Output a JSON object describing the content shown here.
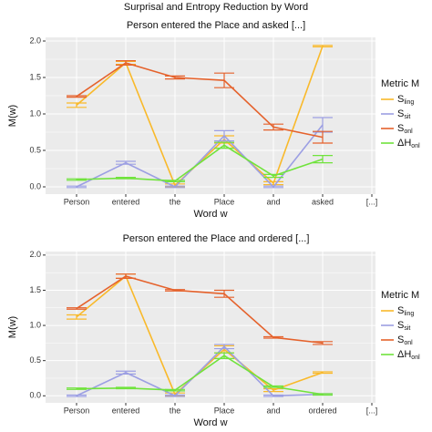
{
  "title": "Surprisal and Entropy Reduction by Word",
  "chart_data": [
    {
      "type": "line",
      "title": "Person entered the Place and asked [...]",
      "xlabel": "Word w",
      "ylabel": "M(w)",
      "legend_title": "Metric M",
      "legend": "right",
      "grid": true,
      "categories": [
        "Person",
        "entered",
        "the",
        "Place",
        "and",
        "asked",
        "[...]"
      ],
      "ylim": [
        -0.1,
        2.05
      ],
      "yticks": [
        {
          "value": 0,
          "label": "0.0"
        },
        {
          "value": 0.5,
          "label": "0.5"
        },
        {
          "value": 1,
          "label": "1.0"
        },
        {
          "value": 1.5,
          "label": "1.5"
        },
        {
          "value": 2,
          "label": "2.0"
        }
      ],
      "series": [
        {
          "name": "S",
          "name_sub": "ling",
          "color": "#f9b92a",
          "values": [
            1.12,
            1.7,
            0.02,
            0.65,
            0.05,
            1.93,
            null
          ],
          "errors": [
            0.03,
            0.02,
            0.02,
            0.05,
            0.02,
            0.01,
            null
          ]
        },
        {
          "name": "S",
          "name_sub": "sit",
          "color": "#9c9fe3",
          "values": [
            0.0,
            0.33,
            0.0,
            0.7,
            0.0,
            0.85,
            null
          ],
          "errors": [
            0.01,
            0.02,
            0.01,
            0.07,
            0.01,
            0.1,
            null
          ]
        },
        {
          "name": "S",
          "name_sub": "onl",
          "color": "#e5622c",
          "values": [
            1.24,
            1.7,
            1.5,
            1.46,
            0.82,
            0.68,
            null
          ],
          "errors": [
            0.01,
            0.03,
            0.02,
            0.1,
            0.04,
            0.08,
            null
          ]
        },
        {
          "name": "ΔH",
          "name_sub": "onl",
          "color": "#70e33c",
          "values": [
            0.1,
            0.12,
            0.08,
            0.57,
            0.15,
            0.38,
            null
          ],
          "errors": [
            0.01,
            0.01,
            0.01,
            0.04,
            0.02,
            0.05,
            null
          ]
        }
      ]
    },
    {
      "type": "line",
      "title": "Person entered the Place and ordered [...]",
      "xlabel": "Word w",
      "ylabel": "M(w)",
      "legend_title": "Metric M",
      "legend": "right",
      "grid": true,
      "categories": [
        "Person",
        "entered",
        "the",
        "Place",
        "and",
        "ordered",
        "[...]"
      ],
      "ylim": [
        -0.1,
        2.05
      ],
      "yticks": [
        {
          "value": 0,
          "label": "0.0"
        },
        {
          "value": 0.5,
          "label": "0.5"
        },
        {
          "value": 1,
          "label": "1.0"
        },
        {
          "value": 1.5,
          "label": "1.5"
        },
        {
          "value": 2,
          "label": "2.0"
        }
      ],
      "series": [
        {
          "name": "S",
          "name_sub": "ling",
          "color": "#f9b92a",
          "values": [
            1.12,
            1.7,
            0.02,
            0.66,
            0.08,
            0.33,
            null
          ],
          "errors": [
            0.03,
            0.03,
            0.02,
            0.05,
            0.02,
            0.01,
            null
          ]
        },
        {
          "name": "S",
          "name_sub": "sit",
          "color": "#9c9fe3",
          "values": [
            0.0,
            0.33,
            0.0,
            0.7,
            0.0,
            0.02,
            null
          ],
          "errors": [
            0.01,
            0.02,
            0.01,
            0.03,
            0.01,
            0.01,
            null
          ]
        },
        {
          "name": "S",
          "name_sub": "onl",
          "color": "#e5622c",
          "values": [
            1.24,
            1.7,
            1.5,
            1.45,
            0.83,
            0.75,
            null
          ],
          "errors": [
            0.01,
            0.03,
            0.01,
            0.05,
            0.01,
            0.02,
            null
          ]
        },
        {
          "name": "ΔH",
          "name_sub": "onl",
          "color": "#70e33c",
          "values": [
            0.1,
            0.11,
            0.08,
            0.57,
            0.13,
            0.02,
            null
          ],
          "errors": [
            0.01,
            0.01,
            0.01,
            0.04,
            0.01,
            0.01,
            null
          ]
        }
      ]
    }
  ]
}
